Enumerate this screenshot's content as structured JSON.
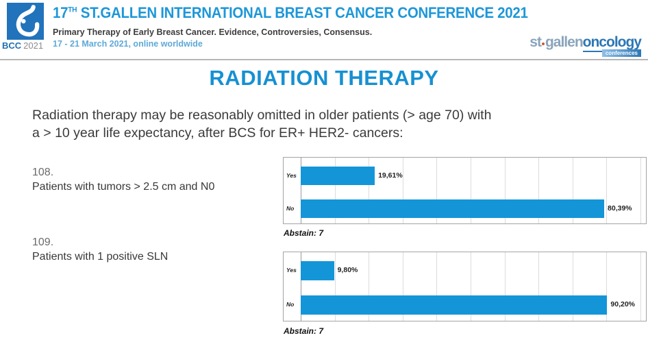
{
  "colors": {
    "accent_blue": "#1790d2",
    "bar_blue": "#1495d8",
    "logo_blue": "#2173bb",
    "date_blue": "#5ea9d8",
    "divider_gray": "#b5b5b5"
  },
  "header": {
    "logo": {
      "abbr": "BCC",
      "year": "2021"
    },
    "title": {
      "num": "17",
      "sup": "TH",
      "rest": " ST.GALLEN INTERNATIONAL BREAST CANCER CONFERENCE 2021"
    },
    "subtitle": "Primary Therapy of Early Breast Cancer. Evidence, Controversies, Consensus.",
    "date_line": "17 - 21 March 2021, online worldwide",
    "partner_logo": {
      "part1": "st",
      "part2": "gallen",
      "part3": "oncology",
      "badge": "conferences"
    }
  },
  "main": {
    "page_title": "RADIATION THERAPY",
    "intro_lines": [
      "Radiation therapy may be reasonably omitted in older patients (> age 70)  with",
      "a > 10 year life expectancy, after BCS for ER+ HER2- cancers:"
    ]
  },
  "questions": [
    {
      "number": "108.",
      "text": "Patients with tumors > 2.5 cm and N0"
    },
    {
      "number": "109.",
      "text": "Patients with 1 positive SLN"
    }
  ],
  "chart_data": [
    {
      "type": "bar",
      "orientation": "horizontal",
      "question": "108",
      "categories": [
        "Yes",
        "No"
      ],
      "values": [
        19.61,
        80.39
      ],
      "value_labels": [
        "19,61%",
        "80,39%"
      ],
      "abstain_label": "Abstain: 7",
      "xlim": [
        0,
        90
      ],
      "grid_divisions": 10,
      "grid": true,
      "legend": false,
      "bar_color": "#1495d8"
    },
    {
      "type": "bar",
      "orientation": "horizontal",
      "question": "109",
      "categories": [
        "Yes",
        "No"
      ],
      "values": [
        9.8,
        90.2
      ],
      "value_labels": [
        "9,80%",
        "90,20%"
      ],
      "abstain_label": "Abstain: 7",
      "xlim": [
        0,
        100
      ],
      "grid_divisions": 10,
      "grid": true,
      "legend": false,
      "bar_color": "#1495d8"
    }
  ]
}
